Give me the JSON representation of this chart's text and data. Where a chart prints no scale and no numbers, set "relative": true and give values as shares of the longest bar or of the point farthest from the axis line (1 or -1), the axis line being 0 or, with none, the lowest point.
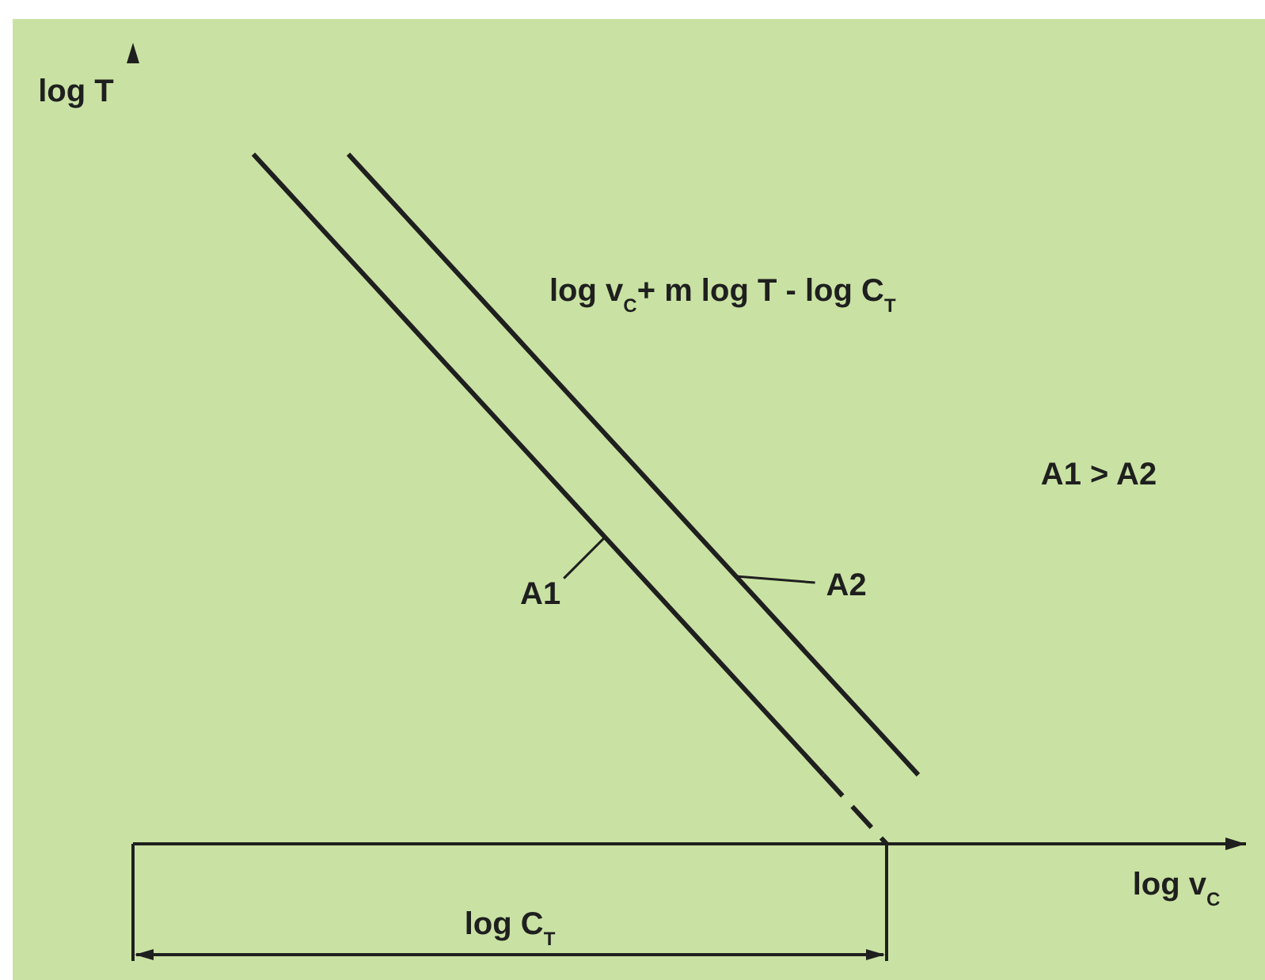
{
  "chart_data": {
    "type": "line",
    "relative": true,
    "xlabel": "log v$_{C}$",
    "ylabel": "log T",
    "annotations": [
      "log v$_{C}$+ m log T - log C$_{T}$",
      "A1 > A2",
      "log C$_{T}$"
    ],
    "categories": [
      null,
      null,
      null,
      null,
      null,
      null,
      null,
      null,
      null,
      null,
      null,
      null,
      null,
      null,
      null,
      null,
      null,
      null,
      null,
      null,
      null,
      null,
      null,
      null,
      null,
      null,
      null,
      null,
      null,
      null,
      null,
      null
    ],
    "series": [
      {
        "name": "A1",
        "color": "#1f1f1f",
        "values": [
          1,
          0.95,
          0.9,
          0.85,
          0.8,
          0.75,
          0.7,
          0.65,
          0.6,
          0.55,
          0.5,
          0.45,
          0.4,
          0.35,
          0.3,
          0.25,
          0.2,
          0.15,
          0.1,
          null,
          null,
          null,
          null,
          null,
          null,
          null,
          null,
          null,
          null,
          null,
          null,
          null
        ]
      },
      {
        "color": "#1f1f1f",
        "line_style": "dashed",
        "values": [
          null,
          null,
          null,
          null,
          null,
          null,
          null,
          null,
          null,
          null,
          null,
          null,
          null,
          null,
          null,
          null,
          null,
          null,
          0.1,
          0.05,
          0,
          null,
          null,
          null,
          null,
          null,
          null,
          null,
          null,
          null,
          null,
          null
        ]
      },
      {
        "name": "A2",
        "color": "#1f1f1f",
        "values": [
          null,
          null,
          null,
          1,
          0.95,
          0.9,
          0.85,
          0.8,
          0.75,
          0.7,
          0.65,
          0.6,
          0.55,
          0.5,
          0.45,
          0.4,
          0.35,
          0.3,
          0.25,
          0.2,
          0.15,
          0.1,
          null,
          null,
          null,
          null,
          null,
          null,
          null,
          null,
          null,
          null
        ]
      }
    ]
  }
}
